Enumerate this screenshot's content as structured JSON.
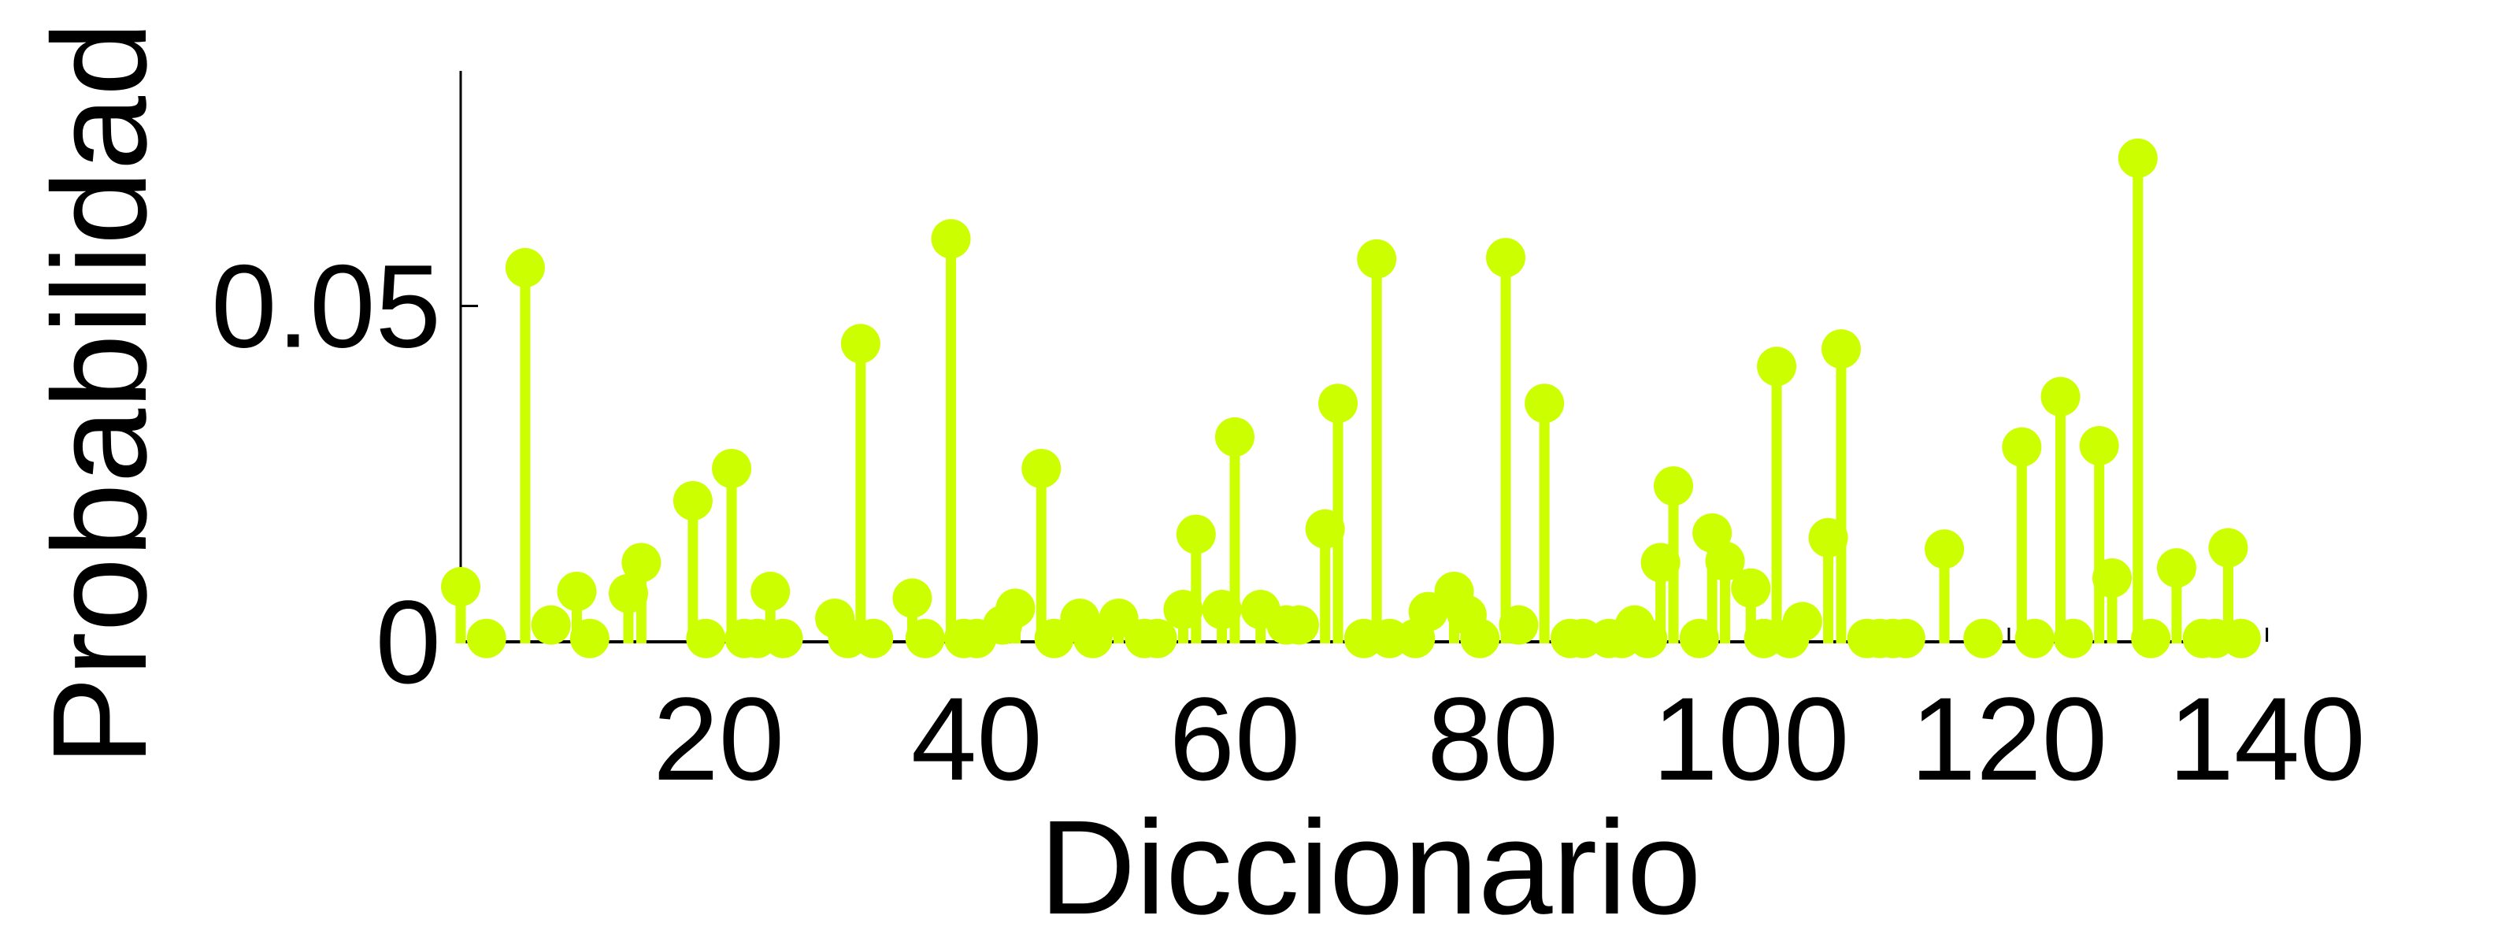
{
  "chart_data": {
    "type": "stem",
    "xlabel": "Diccionario",
    "ylabel": "Probabilidad",
    "xlim": [
      0,
      141
    ],
    "ylim": [
      0,
      0.085
    ],
    "xticks": [
      20,
      40,
      60,
      80,
      100,
      120,
      140
    ],
    "yticks": [
      0,
      0.05
    ],
    "ytick_labels": [
      "0",
      "0.05"
    ],
    "grid": false,
    "series": [
      {
        "color": "#ccff00",
        "x": [
          0,
          2,
          5,
          7,
          9,
          10,
          13,
          14,
          18,
          19,
          21,
          22,
          23,
          24,
          25,
          29,
          30,
          31,
          32,
          35,
          36,
          38,
          39,
          40,
          42,
          43,
          45,
          46,
          48,
          49,
          51,
          53,
          54,
          56,
          57,
          59,
          60,
          62,
          64,
          65,
          67,
          68,
          70,
          71,
          72,
          74,
          75,
          77,
          78,
          79,
          81,
          82,
          84,
          86,
          87,
          89,
          90,
          91,
          92,
          93,
          94,
          96,
          97,
          98,
          100,
          101,
          102,
          103,
          104,
          106,
          107,
          109,
          110,
          111,
          112,
          115,
          118,
          121,
          122,
          124,
          125,
          127,
          128,
          130,
          131,
          133,
          135,
          136,
          137,
          138
        ],
        "y": [
          0.0082,
          0.0005,
          0.0557,
          0.0025,
          0.0075,
          0.0005,
          0.0072,
          0.0118,
          0.021,
          0.0005,
          0.0258,
          0.0005,
          0.0005,
          0.0075,
          0.0005,
          0.0035,
          0.0005,
          0.0444,
          0.0005,
          0.0065,
          0.0005,
          0.06,
          0.0005,
          0.0005,
          0.0025,
          0.005,
          0.0258,
          0.0005,
          0.0035,
          0.0005,
          0.0035,
          0.0005,
          0.0005,
          0.0048,
          0.016,
          0.0048,
          0.0305,
          0.0048,
          0.0025,
          0.0025,
          0.0168,
          0.0355,
          0.0005,
          0.057,
          0.0005,
          0.0005,
          0.0045,
          0.0075,
          0.004,
          0.0005,
          0.0572,
          0.0025,
          0.0355,
          0.0005,
          0.0005,
          0.0005,
          0.0005,
          0.0025,
          0.0005,
          0.0118,
          0.0232,
          0.0005,
          0.0162,
          0.012,
          0.008,
          0.0005,
          0.041,
          0.0005,
          0.003,
          0.0155,
          0.0436,
          0.0005,
          0.0005,
          0.0005,
          0.0005,
          0.0138,
          0.0005,
          0.029,
          0.0005,
          0.0365,
          0.0005,
          0.0292,
          0.0095,
          0.072,
          0.0005,
          0.011,
          0.0005,
          0.0005,
          0.014,
          0.0005
        ]
      }
    ]
  }
}
